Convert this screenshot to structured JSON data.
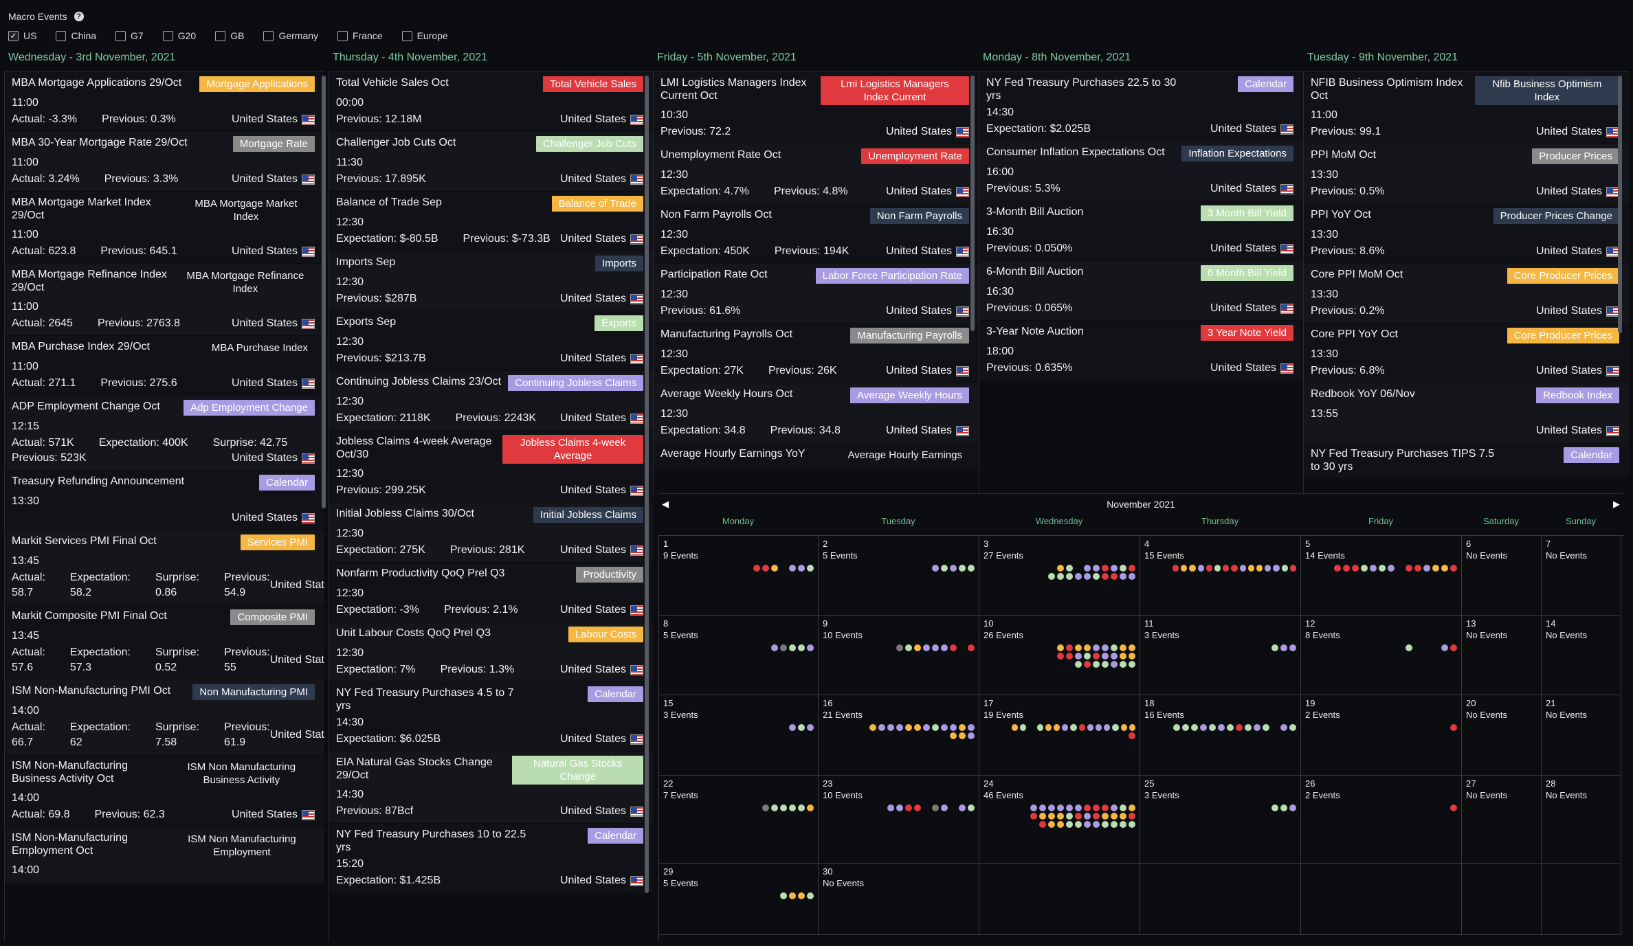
{
  "header": {
    "title": "Macro Events",
    "help_icon": "?"
  },
  "filters": [
    {
      "label": "US",
      "checked": true
    },
    {
      "label": "China",
      "checked": false
    },
    {
      "label": "G7",
      "checked": false
    },
    {
      "label": "G20",
      "checked": false
    },
    {
      "label": "GB",
      "checked": false
    },
    {
      "label": "Germany",
      "checked": false
    },
    {
      "label": "France",
      "checked": false
    },
    {
      "label": "Europe",
      "checked": false
    }
  ],
  "colors": {
    "orange": "#f5b642",
    "green_light": "#b9ddb0",
    "gray": "#8a8a8a",
    "red": "#e03a3e",
    "purple": "#a99be3",
    "navy": "#2e3a4e",
    "accent": "#7cc9a3"
  },
  "columns": [
    {
      "date": "Wednesday - 3rd November, 2021",
      "events": [
        {
          "name": "MBA Mortgage Applications 29/Oct",
          "tag": "Mortgage Applications",
          "tag_color": "orange",
          "time": "11:00",
          "values": [
            "Actual: -3.3%",
            "Previous: 0.3%"
          ],
          "country": "United States"
        },
        {
          "name": "MBA 30-Year Mortgage Rate 29/Oct",
          "tag": "Mortgage Rate",
          "tag_color": "gray",
          "time": "11:00",
          "values": [
            "Actual: 3.24%",
            "Previous: 3.3%"
          ],
          "country": "United States"
        },
        {
          "name": "MBA Mortgage Market Index 29/Oct",
          "tag": "MBA Mortgage Market Index",
          "tag_color": "none",
          "time": "11:00",
          "values": [
            "Actual: 623.8",
            "Previous: 645.1"
          ],
          "country": "United States"
        },
        {
          "name": "MBA Mortgage Refinance Index 29/Oct",
          "tag": "MBA Mortgage Refinance Index",
          "tag_color": "none",
          "time": "11:00",
          "values": [
            "Actual: 2645",
            "Previous: 2763.8"
          ],
          "country": "United States"
        },
        {
          "name": "MBA Purchase Index 29/Oct",
          "tag": "MBA Purchase Index",
          "tag_color": "none",
          "time": "11:00",
          "values": [
            "Actual: 271.1",
            "Previous: 275.6"
          ],
          "country": "United States"
        },
        {
          "name": "ADP Employment Change Oct",
          "tag": "Adp Employment Change",
          "tag_color": "purple",
          "time": "12:15",
          "values": [
            "Actual: 571K",
            "Expectation: 400K",
            "Surprise: 42.75"
          ],
          "values2": [
            "Previous: 523K"
          ],
          "country": "United States"
        },
        {
          "name": "Treasury Refunding Announcement",
          "tag": "Calendar",
          "tag_color": "purple",
          "time": "13:30",
          "values": [],
          "country": "United States"
        },
        {
          "name": "Markit Services PMI Final Oct",
          "tag": "Services PMI",
          "tag_color": "orange",
          "time": "13:45",
          "values": [
            "Actual: 58.7",
            "Expectation: 58.2",
            "Surprise: 0.86",
            "Previous: 54.9"
          ],
          "values2": [],
          "country": "United States"
        },
        {
          "name": "Markit Composite PMI Final Oct",
          "tag": "Composite PMI",
          "tag_color": "gray",
          "time": "13:45",
          "values": [
            "Actual: 57.6",
            "Expectation: 57.3",
            "Surprise: 0.52",
            "Previous: 55"
          ],
          "values2": [],
          "country": "United States"
        },
        {
          "name": "ISM Non-Manufacturing PMI Oct",
          "tag": "Non Manufacturing PMI",
          "tag_color": "navy",
          "time": "14:00",
          "values": [
            "Actual: 66.7",
            "Expectation: 62",
            "Surprise: 7.58",
            "Previous: 61.9"
          ],
          "values2": [],
          "country": "United States"
        },
        {
          "name": "ISM Non-Manufacturing Business Activity Oct",
          "tag": "ISM Non Manufacturing Business Activity",
          "tag_color": "none",
          "time": "14:00",
          "values": [
            "Actual: 69.8",
            "Previous: 62.3"
          ],
          "country": "United States"
        },
        {
          "name": "ISM Non-Manufacturing Employment Oct",
          "tag": "ISM Non Manufacturing Employment",
          "tag_color": "none",
          "time": "14:00",
          "values": [],
          "country": ""
        }
      ]
    },
    {
      "date": "Thursday - 4th November, 2021",
      "events": [
        {
          "name": "Total Vehicle Sales Oct",
          "tag": "Total Vehicle Sales",
          "tag_color": "red",
          "time": "00:00",
          "values": [
            "Previous: 12.18M"
          ],
          "country": "United States"
        },
        {
          "name": "Challenger Job Cuts Oct",
          "tag": "Challenger Job Cuts",
          "tag_color": "green_light",
          "time": "11:30",
          "values": [
            "Previous: 17.895K"
          ],
          "country": "United States"
        },
        {
          "name": "Balance of Trade Sep",
          "tag": "Balance of Trade",
          "tag_color": "orange",
          "time": "12:30",
          "values": [
            "Expectation: $-80.5B",
            "Previous: $-73.3B"
          ],
          "country": "United States"
        },
        {
          "name": "Imports Sep",
          "tag": "Imports",
          "tag_color": "navy",
          "time": "12:30",
          "values": [
            "Previous: $287B"
          ],
          "country": "United States"
        },
        {
          "name": "Exports Sep",
          "tag": "Exports",
          "tag_color": "green_light",
          "time": "12:30",
          "values": [
            "Previous: $213.7B"
          ],
          "country": "United States"
        },
        {
          "name": "Continuing Jobless Claims 23/Oct",
          "tag": "Continuing Jobless Claims",
          "tag_color": "purple",
          "time": "12:30",
          "values": [
            "Expectation: 2118K",
            "Previous: 2243K"
          ],
          "country": "United States"
        },
        {
          "name": "Jobless Claims 4-week Average Oct/30",
          "tag": "Jobless Claims 4-week Average",
          "tag_color": "red",
          "time": "12:30",
          "values": [
            "Previous: 299.25K"
          ],
          "country": "United States"
        },
        {
          "name": "Initial Jobless Claims 30/Oct",
          "tag": "Initial Jobless Claims",
          "tag_color": "navy",
          "time": "12:30",
          "values": [
            "Expectation: 275K",
            "Previous: 281K"
          ],
          "country": "United States"
        },
        {
          "name": "Nonfarm Productivity QoQ Prel Q3",
          "tag": "Productivity",
          "tag_color": "gray",
          "time": "12:30",
          "values": [
            "Expectation: -3%",
            "Previous: 2.1%"
          ],
          "country": "United States"
        },
        {
          "name": "Unit Labour Costs QoQ Prel Q3",
          "tag": "Labour Costs",
          "tag_color": "orange",
          "time": "12:30",
          "values": [
            "Expectation: 7%",
            "Previous: 1.3%"
          ],
          "country": "United States"
        },
        {
          "name": "NY Fed Treasury Purchases 4.5 to 7 yrs",
          "tag": "Calendar",
          "tag_color": "purple",
          "time": "14:30",
          "values": [
            "Expectation: $6.025B"
          ],
          "country": "United States"
        },
        {
          "name": "EIA Natural Gas Stocks Change 29/Oct",
          "tag": "Natural Gas Stocks Change",
          "tag_color": "green_light",
          "time": "14:30",
          "values": [
            "Previous: 87Bcf"
          ],
          "country": "United States"
        },
        {
          "name": "NY Fed Treasury Purchases 10 to 22.5 yrs",
          "tag": "Calendar",
          "tag_color": "purple",
          "time": "15:20",
          "values": [
            "Expectation: $1.425B"
          ],
          "country": "United States"
        }
      ]
    },
    {
      "date": "Friday - 5th November, 2021",
      "events": [
        {
          "name": "LMI Logistics Managers Index Current Oct",
          "tag": "Lmi Logistics Managers Index Current",
          "tag_color": "red",
          "time": "10:30",
          "values": [
            "Previous: 72.2"
          ],
          "country": "United States"
        },
        {
          "name": "Unemployment Rate Oct",
          "tag": "Unemployment Rate",
          "tag_color": "red",
          "time": "12:30",
          "values": [
            "Expectation: 4.7%",
            "Previous: 4.8%"
          ],
          "country": "United States"
        },
        {
          "name": "Non Farm Payrolls Oct",
          "tag": "Non Farm Payrolls",
          "tag_color": "navy",
          "time": "12:30",
          "values": [
            "Expectation: 450K",
            "Previous: 194K"
          ],
          "country": "United States"
        },
        {
          "name": "Participation Rate Oct",
          "tag": "Labor Force Participation Rate",
          "tag_color": "purple",
          "time": "12:30",
          "values": [
            "Previous: 61.6%"
          ],
          "country": "United States"
        },
        {
          "name": "Manufacturing Payrolls Oct",
          "tag": "Manufacturing Payrolls",
          "tag_color": "gray",
          "time": "12:30",
          "values": [
            "Expectation: 27K",
            "Previous: 26K"
          ],
          "country": "United States"
        },
        {
          "name": "Average Weekly Hours Oct",
          "tag": "Average Weekly Hours",
          "tag_color": "purple",
          "time": "12:30",
          "values": [
            "Expectation: 34.8",
            "Previous: 34.8"
          ],
          "country": "United States"
        },
        {
          "name": "Average Hourly Earnings YoY",
          "tag": "Average Hourly Earnings",
          "tag_color": "none",
          "time": "",
          "values": [],
          "country": ""
        }
      ]
    },
    {
      "date": "Monday - 8th November, 2021",
      "events": [
        {
          "name": "NY Fed Treasury Purchases 22.5 to 30 yrs",
          "tag": "Calendar",
          "tag_color": "purple",
          "time": "14:30",
          "values": [
            "Expectation: $2.025B"
          ],
          "country": "United States"
        },
        {
          "name": "Consumer Inflation Expectations Oct",
          "tag": "Inflation Expectations",
          "tag_color": "navy",
          "time": "16:00",
          "values": [
            "Previous: 5.3%"
          ],
          "country": "United States"
        },
        {
          "name": "3-Month Bill Auction",
          "tag": "3 Month Bill Yield",
          "tag_color": "green_light",
          "time": "16:30",
          "values": [
            "Previous: 0.050%"
          ],
          "country": "United States"
        },
        {
          "name": "6-Month Bill Auction",
          "tag": "6 Month Bill Yield",
          "tag_color": "green_light",
          "time": "16:30",
          "values": [
            "Previous: 0.065%"
          ],
          "country": "United States"
        },
        {
          "name": "3-Year Note Auction",
          "tag": "3 Year Note Yield",
          "tag_color": "red",
          "time": "18:00",
          "values": [
            "Previous: 0.635%"
          ],
          "country": "United States"
        }
      ]
    },
    {
      "date": "Tuesday - 9th November, 2021",
      "events": [
        {
          "name": "NFIB Business Optimism Index Oct",
          "tag": "Nfib Business Optimism Index",
          "tag_color": "navy",
          "time": "11:00",
          "values": [
            "Previous: 99.1"
          ],
          "country": "United States"
        },
        {
          "name": "PPI MoM Oct",
          "tag": "Producer Prices",
          "tag_color": "gray",
          "time": "13:30",
          "values": [
            "Previous: 0.5%"
          ],
          "country": "United States"
        },
        {
          "name": "PPI YoY Oct",
          "tag": "Producer Prices Change",
          "tag_color": "navy",
          "time": "13:30",
          "values": [
            "Previous: 8.6%"
          ],
          "country": "United States"
        },
        {
          "name": "Core PPI MoM Oct",
          "tag": "Core Producer Prices",
          "tag_color": "orange",
          "time": "13:30",
          "values": [
            "Previous: 0.2%"
          ],
          "country": "United States"
        },
        {
          "name": "Core PPI YoY Oct",
          "tag": "Core Producer Prices",
          "tag_color": "orange",
          "time": "13:30",
          "values": [
            "Previous: 6.8%"
          ],
          "country": "United States"
        },
        {
          "name": "Redbook YoY 06/Nov",
          "tag": "Redbook Index",
          "tag_color": "purple",
          "time": "13:55",
          "values": [],
          "country": "United States"
        },
        {
          "name": "NY Fed Treasury Purchases TIPS 7.5 to 30 yrs",
          "tag": "Calendar",
          "tag_color": "purple",
          "time": "",
          "values": [],
          "country": ""
        }
      ]
    }
  ],
  "calendar": {
    "month": "November 2021",
    "prev_icon": "◀",
    "next_icon": "▶",
    "weekdays": [
      "Monday",
      "Tuesday",
      "Wednesday",
      "Thursday",
      "Friday",
      "Saturday",
      "Sunday"
    ],
    "weeks": [
      [
        {
          "day": "1",
          "label": "9 Events",
          "dots": "rry_ppg"
        },
        {
          "day": "2",
          "label": "5 Events",
          "dots": "pgpgg"
        },
        {
          "day": "3",
          "label": "27 Events",
          "dots": "yg_pprpgr|gggppgrrpp"
        },
        {
          "day": "4",
          "label": "15 Events",
          "dots": "ryyprgrrpyyppgr"
        },
        {
          "day": "5",
          "label": "14 Events",
          "dots": "rrrgpgp_rrpyyr"
        },
        {
          "day": "6",
          "label": "No Events",
          "dots": ""
        },
        {
          "day": "7",
          "label": "No Events",
          "dots": ""
        }
      ],
      [
        {
          "day": "8",
          "label": "5 Events",
          "dots": "pnggp"
        },
        {
          "day": "9",
          "label": "10 Events",
          "dots": "ngypppr r"
        },
        {
          "day": "10",
          "label": "26 Events",
          "dots": "yryyppgyy|rrpgrppyy|grggpgg"
        },
        {
          "day": "11",
          "label": "3 Events",
          "dots": "gpp"
        },
        {
          "day": "12",
          "label": "8 Events",
          "dots": "g___pr"
        },
        {
          "day": "13",
          "label": "No Events",
          "dots": ""
        },
        {
          "day": "14",
          "label": "No Events",
          "dots": ""
        }
      ],
      [
        {
          "day": "15",
          "label": "3 Events",
          "dots": "pgp"
        },
        {
          "day": "16",
          "label": "21 Events",
          "dots": "ypppyypgppyp|yyp"
        },
        {
          "day": "17",
          "label": "19 Events",
          "dots": "yg_gyypgrpppgyy|r"
        },
        {
          "day": "18",
          "label": "16 Events",
          "dots": "gggpgpgrgpg_pg"
        },
        {
          "day": "19",
          "label": "2 Events",
          "dots": "r"
        },
        {
          "day": "20",
          "label": "No Events",
          "dots": ""
        },
        {
          "day": "21",
          "label": "No Events",
          "dots": ""
        }
      ],
      [
        {
          "day": "22",
          "label": "7 Events",
          "dots": "nggggy"
        },
        {
          "day": "23",
          "label": "10 Events",
          "dots": "pprr_np_pg"
        },
        {
          "day": "24",
          "label": "46 Events",
          "dots": "pppppprrrpgy|ryyygrpryyyr|ryyggppgggg"
        },
        {
          "day": "25",
          "label": "3 Events",
          "dots": "ggp"
        },
        {
          "day": "26",
          "label": "2 Events",
          "dots": "r"
        },
        {
          "day": "27",
          "label": "No Events",
          "dots": ""
        },
        {
          "day": "28",
          "label": "No Events",
          "dots": ""
        }
      ],
      [
        {
          "day": "29",
          "label": "5 Events",
          "dots": "gyyg"
        },
        {
          "day": "30",
          "label": "No Events",
          "dots": ""
        },
        {
          "day": "",
          "label": "",
          "dots": ""
        },
        {
          "day": "",
          "label": "",
          "dots": ""
        },
        {
          "day": "",
          "label": "",
          "dots": ""
        },
        {
          "day": "",
          "label": "",
          "dots": ""
        },
        {
          "day": "",
          "label": "",
          "dots": ""
        }
      ]
    ]
  }
}
